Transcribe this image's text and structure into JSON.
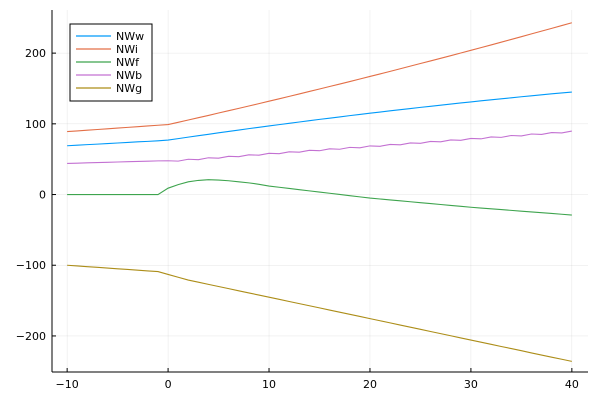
{
  "chart_data": {
    "type": "line",
    "title": "",
    "xlabel": "",
    "ylabel": "",
    "xlim": [
      -11.5,
      41.6
    ],
    "ylim": [
      -251,
      261
    ],
    "grid": true,
    "legend_position": "top-left",
    "xticks": [
      -10,
      0,
      10,
      20,
      30,
      40
    ],
    "xtick_labels": [
      "−10",
      "0",
      "10",
      "20",
      "30",
      "40"
    ],
    "yticks": [
      -200,
      -100,
      0,
      100,
      200
    ],
    "ytick_labels": [
      "−200",
      "−100",
      "0",
      "100",
      "200"
    ],
    "x": [
      -10,
      -9,
      -8,
      -7,
      -6,
      -5,
      -4,
      -3,
      -2,
      -1,
      0,
      1,
      2,
      3,
      4,
      5,
      6,
      7,
      8,
      9,
      10,
      11,
      12,
      13,
      14,
      15,
      16,
      17,
      18,
      19,
      20,
      21,
      22,
      23,
      24,
      25,
      26,
      27,
      28,
      29,
      30,
      31,
      32,
      33,
      34,
      35,
      36,
      37,
      38,
      39,
      40
    ],
    "series": [
      {
        "name": "NWw",
        "color": "#009AFA",
        "values": [
          69,
          69.8,
          70.6,
          71.3,
          72.1,
          72.9,
          73.7,
          74.5,
          75.2,
          76,
          77,
          79.1,
          81.2,
          83.2,
          85.2,
          87.3,
          89.2,
          91.2,
          93.2,
          95.1,
          97,
          98.9,
          100.8,
          102.6,
          104.4,
          106.3,
          108,
          109.8,
          111.6,
          113.3,
          115,
          116.7,
          118.4,
          120,
          121.6,
          123.3,
          124.8,
          126.4,
          128,
          129.5,
          131,
          132.5,
          134,
          135.4,
          136.8,
          138.3,
          139.6,
          141,
          142.4,
          143.7,
          145
        ]
      },
      {
        "name": "NWi",
        "color": "#E36F47",
        "values": [
          89,
          90,
          91,
          92,
          93,
          94,
          95,
          96,
          97,
          98,
          99,
          102.2,
          105.4,
          108.7,
          111.9,
          115.3,
          118.6,
          121.9,
          125.2,
          128.6,
          132,
          135.4,
          138.8,
          142.3,
          145.8,
          149.3,
          152.8,
          156.3,
          159.8,
          163.4,
          167,
          170.6,
          174.2,
          177.9,
          181.6,
          185.3,
          189,
          192.7,
          196.4,
          200.2,
          204,
          207.8,
          211.6,
          215.5,
          219.4,
          223.3,
          227.2,
          231.1,
          235,
          239,
          243
        ]
      },
      {
        "name": "NWf",
        "color": "#3EA44E",
        "values": [
          0,
          0,
          0,
          0,
          0,
          0,
          0,
          0,
          0,
          0,
          9,
          14,
          18,
          20,
          21,
          20.5,
          19.5,
          18,
          16.5,
          14.5,
          12,
          10.3,
          8.6,
          6.9,
          5.2,
          3.5,
          1.8,
          0.1,
          -1.6,
          -3.3,
          -5,
          -6.3,
          -7.6,
          -8.9,
          -10.2,
          -11.5,
          -12.8,
          -14.1,
          -15.4,
          -16.7,
          -18,
          -19.1,
          -20.2,
          -21.3,
          -22.4,
          -23.5,
          -24.6,
          -25.7,
          -26.8,
          -27.9,
          -29
        ]
      },
      {
        "name": "NWb",
        "color": "#C371D2",
        "values": [
          44,
          44.4,
          44.8,
          45.2,
          45.6,
          46,
          46.4,
          46.8,
          47.2,
          47.6,
          47.8,
          47.25,
          49.9,
          49.35,
          52,
          51.45,
          54.1,
          53.55,
          56.2,
          55.65,
          58.3,
          57.75,
          60.4,
          59.85,
          62.5,
          61.95,
          64.6,
          64.05,
          66.7,
          66.15,
          68.8,
          68.25,
          70.9,
          70.35,
          73,
          72.45,
          75.1,
          74.55,
          77.2,
          76.65,
          79.3,
          78.75,
          81.4,
          80.85,
          83.5,
          82.95,
          85.6,
          85.05,
          87.7,
          87.15,
          89.8
        ]
      },
      {
        "name": "NWg",
        "color": "#AC8D18",
        "values": [
          -100,
          -101,
          -102,
          -103,
          -104,
          -105,
          -106,
          -107,
          -108,
          -109,
          -113,
          -117,
          -121,
          -124,
          -127.1,
          -130.1,
          -133.1,
          -136.2,
          -139.2,
          -142.2,
          -145.2,
          -148.2,
          -151.3,
          -154.3,
          -157.3,
          -160.3,
          -163.4,
          -166.4,
          -169.4,
          -172.4,
          -175.5,
          -178.5,
          -181.5,
          -184.6,
          -187.6,
          -190.6,
          -193.7,
          -196.7,
          -199.7,
          -202.8,
          -205.8,
          -208.8,
          -211.8,
          -214.9,
          -217.9,
          -220.9,
          -224,
          -227,
          -230,
          -233,
          -236
        ]
      }
    ]
  }
}
